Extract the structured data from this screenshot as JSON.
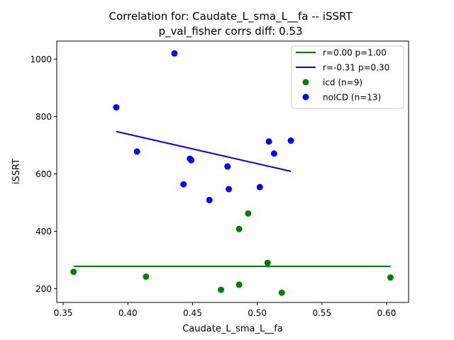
{
  "chart_data": {
    "type": "scatter",
    "title_line1": "Correlation for: Caudate_L_sma_L__fa -- iSSRT",
    "title_line2": "p_val_fisher corrs diff: 0.53",
    "xlabel": "Caudate_L_sma_L__fa",
    "ylabel": "iSSRT",
    "xlim": [
      0.345,
      0.617
    ],
    "ylim": [
      152,
      1063
    ],
    "xticks": [
      0.35,
      0.4,
      0.45,
      0.5,
      0.55,
      0.6
    ],
    "xtick_labels": [
      "0.35",
      "0.40",
      "0.45",
      "0.50",
      "0.55",
      "0.60"
    ],
    "yticks": [
      200,
      400,
      600,
      800,
      1000
    ],
    "ytick_labels": [
      "200",
      "400",
      "600",
      "800",
      "1000"
    ],
    "grid": false,
    "legend_position": "top-right",
    "legend": [
      {
        "label": "r=0.00 p=1.00",
        "kind": "line",
        "color": "#008000"
      },
      {
        "label": "r=-0.31 p=0.30",
        "kind": "line",
        "color": "#0000ff"
      },
      {
        "label": "icd (n=9)",
        "kind": "marker",
        "color": "#008000"
      },
      {
        "label": "noICD (n=13)",
        "kind": "marker",
        "color": "#0000ff"
      }
    ],
    "series": [
      {
        "name": "icd (n=9)",
        "color": "#008000",
        "points": [
          {
            "x": 0.358,
            "y": 259
          },
          {
            "x": 0.414,
            "y": 242
          },
          {
            "x": 0.472,
            "y": 196
          },
          {
            "x": 0.486,
            "y": 214
          },
          {
            "x": 0.486,
            "y": 408
          },
          {
            "x": 0.493,
            "y": 462
          },
          {
            "x": 0.508,
            "y": 290
          },
          {
            "x": 0.519,
            "y": 186
          },
          {
            "x": 0.603,
            "y": 239
          }
        ],
        "fit": {
          "x": [
            0.358,
            0.603
          ],
          "y": [
            278,
            278
          ]
        }
      },
      {
        "name": "noICD (n=13)",
        "color": "#0000ff",
        "points": [
          {
            "x": 0.391,
            "y": 832
          },
          {
            "x": 0.407,
            "y": 678
          },
          {
            "x": 0.436,
            "y": 1020
          },
          {
            "x": 0.443,
            "y": 564
          },
          {
            "x": 0.448,
            "y": 653
          },
          {
            "x": 0.449,
            "y": 648
          },
          {
            "x": 0.463,
            "y": 509
          },
          {
            "x": 0.477,
            "y": 626
          },
          {
            "x": 0.478,
            "y": 547
          },
          {
            "x": 0.502,
            "y": 554
          },
          {
            "x": 0.509,
            "y": 713
          },
          {
            "x": 0.513,
            "y": 671
          },
          {
            "x": 0.526,
            "y": 716
          }
        ],
        "fit": {
          "x": [
            0.391,
            0.526
          ],
          "y": [
            748,
            609
          ]
        }
      }
    ]
  }
}
